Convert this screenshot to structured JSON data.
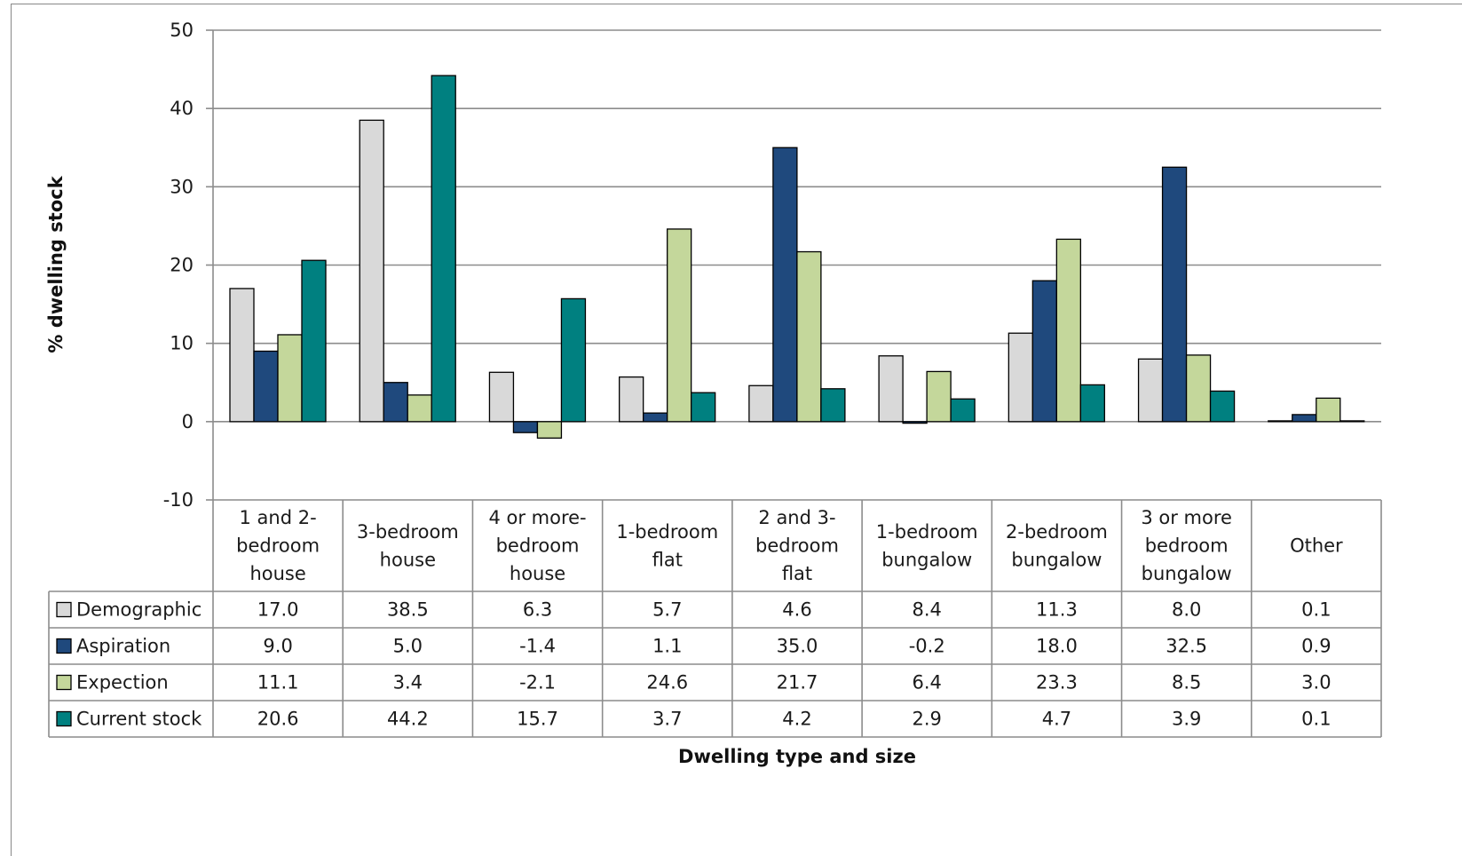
{
  "chart_data": {
    "type": "bar",
    "categories": [
      [
        "1 and 2-",
        "bedroom",
        "house"
      ],
      [
        "3-bedroom",
        "house"
      ],
      [
        "4 or more-",
        "bedroom",
        "house"
      ],
      [
        "1-bedroom",
        "flat"
      ],
      [
        "2 and 3-",
        "bedroom",
        "flat"
      ],
      [
        "1-bedroom",
        "bungalow"
      ],
      [
        "2-bedroom",
        "bungalow"
      ],
      [
        "3 or more",
        "bedroom",
        "bungalow"
      ],
      [
        "Other"
      ]
    ],
    "series": [
      {
        "name": "Demographic",
        "color": "#d9d9d9",
        "values": [
          17.0,
          38.5,
          6.3,
          5.7,
          4.6,
          8.4,
          11.3,
          8.0,
          0.1
        ],
        "labels": [
          "17.0",
          "38.5",
          "6.3",
          "5.7",
          "4.6",
          "8.4",
          "11.3",
          "8.0",
          "0.1"
        ]
      },
      {
        "name": "Aspiration",
        "color": "#1f497d",
        "values": [
          9.0,
          5.0,
          -1.4,
          1.1,
          35.0,
          -0.2,
          18.0,
          32.5,
          0.9
        ],
        "labels": [
          "9.0",
          "5.0",
          "-1.4",
          "1.1",
          "35.0",
          "-0.2",
          "18.0",
          "32.5",
          "0.9"
        ]
      },
      {
        "name": "Expection",
        "color": "#c4d79b",
        "values": [
          11.1,
          3.4,
          -2.1,
          24.6,
          21.7,
          6.4,
          23.3,
          8.5,
          3.0
        ],
        "labels": [
          "11.1",
          "3.4",
          "-2.1",
          "24.6",
          "21.7",
          "6.4",
          "23.3",
          "8.5",
          "3.0"
        ]
      },
      {
        "name": "Current stock",
        "color": "#008080",
        "values": [
          20.6,
          44.2,
          15.7,
          3.7,
          4.2,
          2.9,
          4.7,
          3.9,
          0.1
        ],
        "labels": [
          "20.6",
          "44.2",
          "15.7",
          "3.7",
          "4.2",
          "2.9",
          "4.7",
          "3.9",
          "0.1"
        ]
      }
    ],
    "ylim": [
      -10,
      50
    ],
    "yticks": [
      -10,
      0,
      10,
      20,
      30,
      40,
      50
    ],
    "ylabel": "% dwelling stock",
    "xlabel": "Dwelling type and size",
    "grid": true,
    "legend": "data-table"
  }
}
